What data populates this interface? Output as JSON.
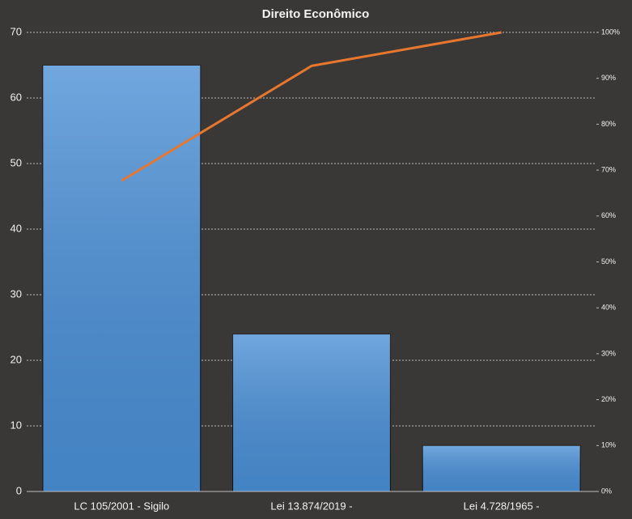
{
  "chart_data": {
    "type": "pareto",
    "title": "Direito Econômico",
    "categories": [
      "LC 105/2001 - Sigilo",
      "Lei 13.874/2019 -",
      "Lei 4.728/1965 -"
    ],
    "series": [
      {
        "type": "bar",
        "color": "#4a8fd6",
        "values": [
          65,
          24,
          7
        ]
      },
      {
        "type": "line",
        "color": "#e8772e",
        "axis": "y2",
        "values": [
          67.7,
          92.7,
          100
        ]
      }
    ],
    "ylim": [
      0,
      70
    ],
    "yticks": [
      0,
      10,
      20,
      30,
      40,
      50,
      60,
      70
    ],
    "y2lim": [
      0,
      100
    ],
    "y2ticks": [
      {
        "value": 0,
        "label": "0%"
      },
      {
        "value": 10,
        "label": "10%"
      },
      {
        "value": 20,
        "label": "20%"
      },
      {
        "value": 30,
        "label": "30%"
      },
      {
        "value": 40,
        "label": "40%"
      },
      {
        "value": 50,
        "label": "50%"
      },
      {
        "value": 60,
        "label": "60%"
      },
      {
        "value": 70,
        "label": "70%"
      },
      {
        "value": 80,
        "label": "80%"
      },
      {
        "value": 90,
        "label": "90%"
      },
      {
        "value": 100,
        "label": "100%"
      }
    ],
    "grid": true
  }
}
